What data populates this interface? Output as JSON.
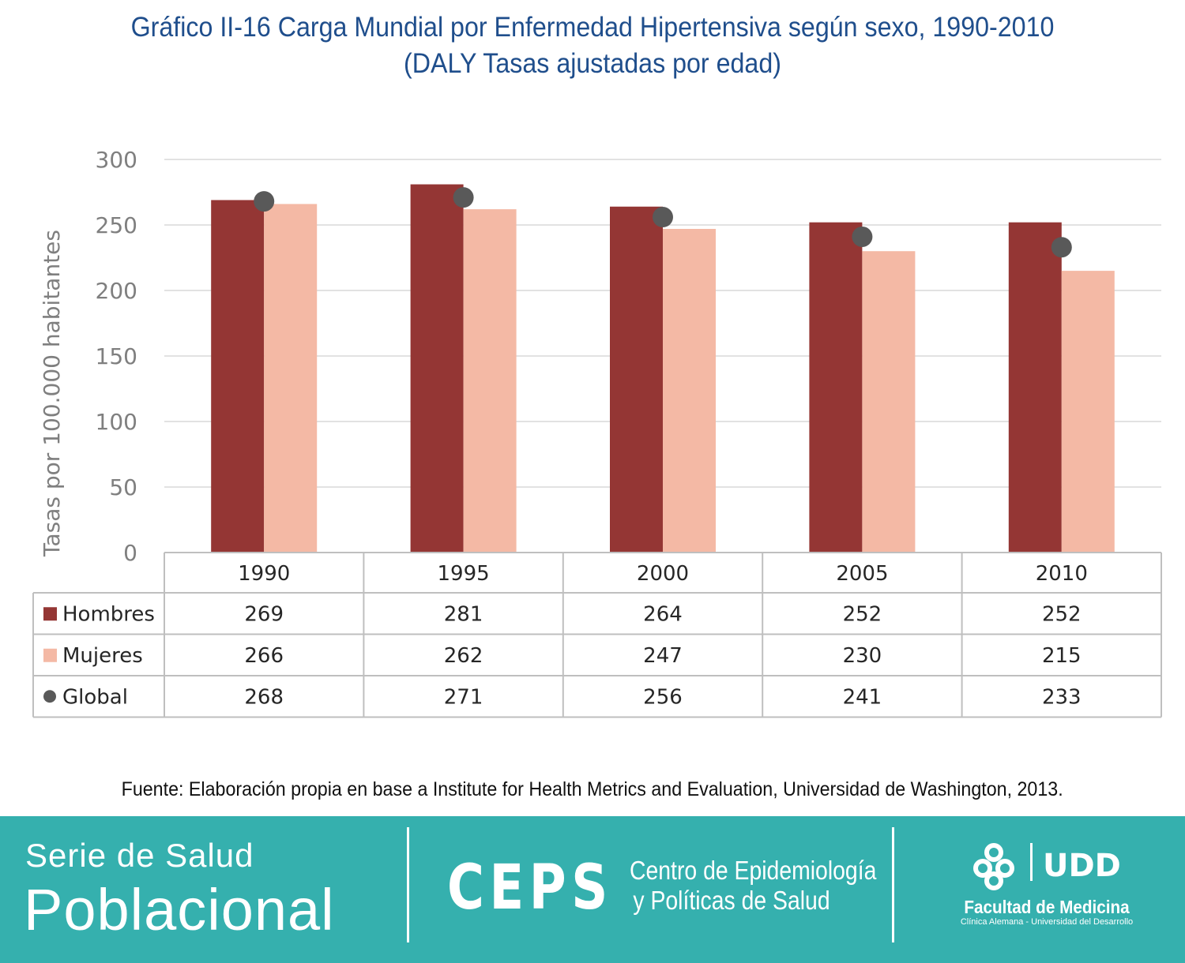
{
  "title": {
    "line1": "Gráfico II-16 Carga Mundial por Enfermedad Hipertensiva según sexo, 1990-2010",
    "line2": "(DALY Tasas ajustadas por edad)"
  },
  "chart_data": {
    "type": "bar",
    "categories": [
      "1990",
      "1995",
      "2000",
      "2005",
      "2010"
    ],
    "series": [
      {
        "name": "Hombres",
        "kind": "bar",
        "color": "#943634",
        "marker": "square",
        "values": [
          269,
          281,
          264,
          252,
          252
        ]
      },
      {
        "name": "Mujeres",
        "kind": "bar",
        "color": "#f4b9a5",
        "marker": "square",
        "values": [
          266,
          262,
          247,
          230,
          215
        ]
      },
      {
        "name": "Global",
        "kind": "point",
        "color": "#595959",
        "marker": "circle",
        "values": [
          268,
          271,
          256,
          241,
          233
        ]
      }
    ],
    "ylabel": "Tasas por 100.000 habitantes",
    "xlabel": "",
    "ylim": [
      0,
      300
    ],
    "yticks": [
      "0",
      "50",
      "100",
      "150",
      "200",
      "250",
      "300"
    ],
    "grid": true,
    "data_table": true
  },
  "source": "Fuente: Elaboración propia en base a Institute for Health Metrics and Evaluation, Universidad de Washington, 2013.",
  "footer": {
    "serie_line1": "Serie de Salud",
    "serie_line2": "Poblacional",
    "ceps": "CEPS",
    "ceps_name_line1": "Centro de Epidemiología",
    "ceps_name_line2": "y Políticas de Salud",
    "udd_logo_text": "UDD",
    "faculty": "Facultad de Medicina",
    "faculty_sub": "Clínica Alemana - Universidad del Desarrollo"
  }
}
